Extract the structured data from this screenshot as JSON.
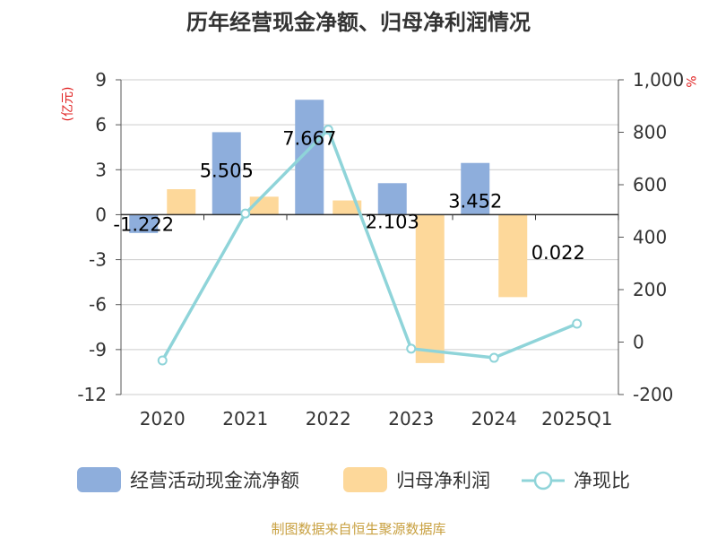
{
  "title": "历年经营现金净额、归母净利润情况",
  "source": "制图数据来自恒生聚源数据库",
  "chart_data": {
    "type": "bar",
    "title": "历年经营现金净额、归母净利润情况",
    "categories": [
      "2020",
      "2021",
      "2022",
      "2023",
      "2024",
      "2025Q1"
    ],
    "left_axis": {
      "unit": "(亿元)",
      "ylim": [
        -12,
        9
      ],
      "ticks": [
        9,
        6,
        3,
        0,
        -3,
        -6,
        -9,
        -12
      ],
      "tick_labels": [
        "9",
        "6",
        "3",
        "0",
        "-3",
        "-6",
        "-9",
        "-12"
      ]
    },
    "right_axis": {
      "unit": "%",
      "ylim": [
        -200,
        1000
      ],
      "ticks": [
        1000,
        800,
        600,
        400,
        200,
        0,
        -200
      ],
      "tick_labels": [
        "1,000",
        "800",
        "600",
        "400",
        "200",
        "0",
        "-200"
      ]
    },
    "series": [
      {
        "name": "经营活动现金流净额",
        "type": "bar",
        "axis": "left",
        "color": "#8eaedc",
        "values": [
          -1.222,
          5.505,
          7.667,
          2.103,
          3.452,
          0.022
        ],
        "labels": [
          "-1.222",
          "5.505",
          "7.667",
          "2.103",
          "3.452",
          "0.022"
        ]
      },
      {
        "name": "归母净利润",
        "type": "bar",
        "axis": "left",
        "color": "#fdd89a",
        "values": [
          1.7,
          1.2,
          0.95,
          -9.9,
          -5.5,
          0.0
        ]
      },
      {
        "name": "净现比",
        "type": "line",
        "axis": "right",
        "color": "#8fd4d9",
        "values": [
          -70,
          490,
          810,
          -25,
          -60,
          70
        ]
      }
    ],
    "grid": true,
    "legend": "bottom"
  }
}
